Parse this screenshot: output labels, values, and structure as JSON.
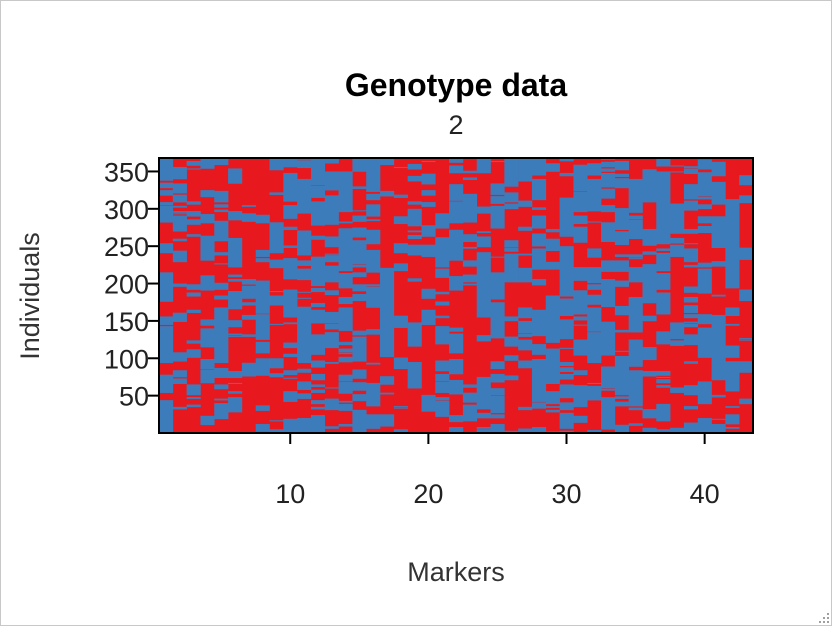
{
  "chart_data": {
    "type": "heatmap",
    "title": "Genotype data",
    "subtitle": "2",
    "xlabel": "Markers",
    "ylabel": "Individuals",
    "xlim": [
      0.5,
      43.5
    ],
    "ylim": [
      0,
      368
    ],
    "x_ticks": [
      10,
      20,
      30,
      40
    ],
    "y_ticks": [
      50,
      100,
      150,
      200,
      250,
      300,
      350
    ],
    "n_markers": 43,
    "n_individuals": 368,
    "colors": {
      "allele_a": "#e8191e",
      "allele_b": "#3d7cbb"
    },
    "legend": "none"
  }
}
